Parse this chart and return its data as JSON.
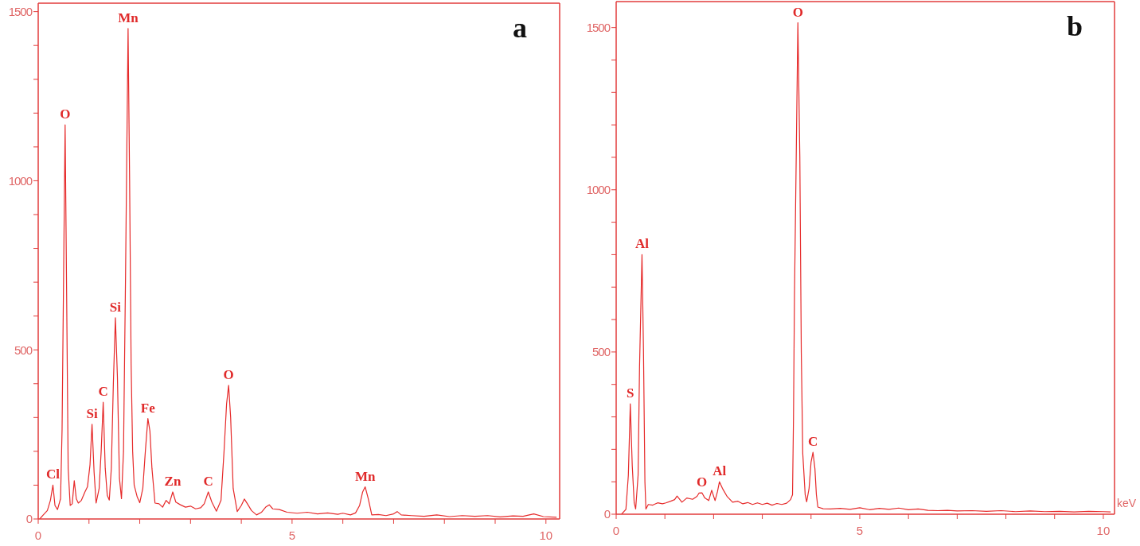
{
  "chart_data": [
    {
      "type": "line",
      "title": "a",
      "color": "#e62a2a",
      "xlim": [
        0,
        10.27
      ],
      "ylim": [
        0,
        1525
      ],
      "xticks": [
        0,
        {
          "value": 1,
          "label": null
        },
        {
          "value": 2,
          "label": null
        },
        {
          "value": 3,
          "label": null
        },
        {
          "value": 4,
          "label": null
        },
        5,
        {
          "value": 6,
          "label": null
        },
        {
          "value": 7,
          "label": null
        },
        {
          "value": 8,
          "label": null
        },
        {
          "value": 9,
          "label": null
        },
        10
      ],
      "yticks": [
        0,
        {
          "value": 100,
          "label": null
        },
        {
          "value": 200,
          "label": null
        },
        {
          "value": 300,
          "label": null
        },
        {
          "value": 400,
          "label": null
        },
        500,
        {
          "value": 600,
          "label": null
        },
        {
          "value": 700,
          "label": null
        },
        {
          "value": 800,
          "label": null
        },
        {
          "value": 900,
          "label": null
        },
        1000,
        {
          "value": 1100,
          "label": null
        },
        {
          "value": 1200,
          "label": null
        },
        {
          "value": 1300,
          "label": null
        },
        {
          "value": 1400,
          "label": null
        },
        1500
      ],
      "x": [
        0.03,
        0.1,
        0.18,
        0.24,
        0.29,
        0.33,
        0.38,
        0.44,
        0.47,
        0.5,
        0.53,
        0.56,
        0.59,
        0.63,
        0.67,
        0.71,
        0.75,
        0.79,
        0.85,
        0.92,
        0.97,
        1.02,
        1.06,
        1.1,
        1.14,
        1.2,
        1.24,
        1.28,
        1.32,
        1.36,
        1.4,
        1.44,
        1.48,
        1.52,
        1.56,
        1.6,
        1.64,
        1.68,
        1.72,
        1.77,
        1.8,
        1.83,
        1.86,
        1.89,
        1.95,
        2.0,
        2.06,
        2.11,
        2.16,
        2.2,
        2.24,
        2.3,
        2.38,
        2.45,
        2.52,
        2.58,
        2.65,
        2.71,
        2.8,
        2.9,
        3.0,
        3.1,
        3.2,
        3.27,
        3.35,
        3.42,
        3.51,
        3.6,
        3.66,
        3.71,
        3.75,
        3.79,
        3.84,
        3.92,
        4.0,
        4.06,
        4.12,
        4.2,
        4.3,
        4.4,
        4.48,
        4.55,
        4.62,
        4.75,
        4.9,
        5.1,
        5.3,
        5.5,
        5.7,
        5.9,
        6.0,
        6.15,
        6.25,
        6.33,
        6.39,
        6.44,
        6.5,
        6.57,
        6.7,
        6.85,
        7.0,
        7.07,
        7.15,
        7.35,
        7.6,
        7.85,
        8.1,
        8.35,
        8.6,
        8.85,
        9.1,
        9.35,
        9.55,
        9.76,
        9.95,
        10.21
      ],
      "values": [
        0,
        12,
        25,
        55,
        100,
        40,
        28,
        60,
        265,
        720,
        1165,
        660,
        150,
        40,
        45,
        113,
        60,
        47,
        55,
        80,
        95,
        160,
        280,
        140,
        47,
        90,
        200,
        345,
        150,
        70,
        56,
        150,
        400,
        595,
        420,
        120,
        60,
        200,
        720,
        1450,
        1000,
        457,
        200,
        100,
        65,
        48,
        90,
        200,
        297,
        260,
        150,
        47,
        45,
        35,
        55,
        45,
        80,
        50,
        42,
        35,
        38,
        30,
        33,
        45,
        80,
        50,
        23,
        55,
        200,
        340,
        395,
        300,
        90,
        22,
        40,
        59,
        45,
        25,
        12,
        20,
        35,
        42,
        30,
        28,
        20,
        17,
        20,
        15,
        18,
        14,
        17,
        12,
        18,
        40,
        80,
        95,
        60,
        12,
        13,
        10,
        15,
        22,
        12,
        10,
        8,
        12,
        7,
        10,
        8,
        10,
        6,
        9,
        8,
        15,
        7,
        5
      ],
      "annotations": [
        {
          "text": "Cl",
          "x": 0.29,
          "y": 100
        },
        {
          "text": "O",
          "x": 0.53,
          "y": 1165
        },
        {
          "text": "Si",
          "x": 1.06,
          "y": 280
        },
        {
          "text": "C",
          "x": 1.28,
          "y": 345
        },
        {
          "text": "Si",
          "x": 1.52,
          "y": 595
        },
        {
          "text": "Mn",
          "x": 1.77,
          "y": 1450
        },
        {
          "text": "Fe",
          "x": 2.16,
          "y": 297
        },
        {
          "text": "Zn",
          "x": 2.65,
          "y": 80
        },
        {
          "text": "C",
          "x": 3.35,
          "y": 80
        },
        {
          "text": "O",
          "x": 3.75,
          "y": 395
        },
        {
          "text": "Mn",
          "x": 6.44,
          "y": 95
        }
      ]
    },
    {
      "type": "line",
      "title": "b",
      "xlabel": "keV",
      "color": "#e62a2a",
      "xlim": [
        0,
        10.23
      ],
      "ylim": [
        0,
        1580
      ],
      "xticks": [
        0,
        {
          "value": 1,
          "label": null
        },
        {
          "value": 2,
          "label": null
        },
        {
          "value": 3,
          "label": null
        },
        {
          "value": 4,
          "label": null
        },
        5,
        {
          "value": 6,
          "label": null
        },
        {
          "value": 7,
          "label": null
        },
        {
          "value": 8,
          "label": null
        },
        {
          "value": 9,
          "label": null
        },
        10
      ],
      "yticks": [
        0,
        {
          "value": 100,
          "label": null
        },
        {
          "value": 200,
          "label": null
        },
        {
          "value": 300,
          "label": null
        },
        {
          "value": 400,
          "label": null
        },
        500,
        {
          "value": 600,
          "label": null
        },
        {
          "value": 700,
          "label": null
        },
        {
          "value": 800,
          "label": null
        },
        {
          "value": 900,
          "label": null
        },
        1000,
        {
          "value": 1100,
          "label": null
        },
        {
          "value": 1200,
          "label": null
        },
        {
          "value": 1300,
          "label": null
        },
        {
          "value": 1400,
          "label": null
        },
        1500
      ],
      "x": [
        0.11,
        0.2,
        0.25,
        0.29,
        0.33,
        0.37,
        0.4,
        0.45,
        0.48,
        0.53,
        0.56,
        0.59,
        0.61,
        0.66,
        0.75,
        0.85,
        0.95,
        1.02,
        1.12,
        1.2,
        1.25,
        1.35,
        1.45,
        1.57,
        1.66,
        1.7,
        1.76,
        1.82,
        1.9,
        1.96,
        2.03,
        2.08,
        2.12,
        2.18,
        2.28,
        2.39,
        2.5,
        2.6,
        2.7,
        2.8,
        2.9,
        3.0,
        3.1,
        3.2,
        3.3,
        3.4,
        3.5,
        3.58,
        3.62,
        3.64,
        3.66,
        3.7,
        3.73,
        3.77,
        3.8,
        3.83,
        3.88,
        3.91,
        3.96,
        4.0,
        4.04,
        4.08,
        4.11,
        4.14,
        4.25,
        4.4,
        4.6,
        4.8,
        5.0,
        5.2,
        5.4,
        5.6,
        5.8,
        6.0,
        6.2,
        6.4,
        6.6,
        6.8,
        7.0,
        7.3,
        7.6,
        7.9,
        8.2,
        8.5,
        8.8,
        9.1,
        9.4,
        9.7,
        10.0,
        10.15
      ],
      "values": [
        0,
        15,
        120,
        340,
        150,
        35,
        16,
        120,
        457,
        800,
        511,
        100,
        16,
        30,
        28,
        35,
        32,
        35,
        40,
        45,
        56,
        37,
        50,
        46,
        55,
        65,
        66,
        50,
        42,
        74,
        42,
        70,
        100,
        80,
        54,
        37,
        40,
        32,
        36,
        30,
        35,
        30,
        34,
        28,
        33,
        30,
        34,
        45,
        60,
        300,
        672,
        1150,
        1515,
        1103,
        500,
        188,
        60,
        38,
        80,
        160,
        191,
        140,
        60,
        22,
        17,
        16,
        18,
        15,
        20,
        14,
        18,
        15,
        19,
        14,
        16,
        12,
        11,
        12,
        10,
        11,
        9,
        11,
        8,
        10,
        8,
        9,
        7,
        9,
        8,
        7
      ],
      "annotations": [
        {
          "text": "S",
          "x": 0.29,
          "y": 340
        },
        {
          "text": "Al",
          "x": 0.53,
          "y": 800
        },
        {
          "text": "O",
          "x": 1.76,
          "y": 66
        },
        {
          "text": "Al",
          "x": 2.12,
          "y": 100
        },
        {
          "text": "O",
          "x": 3.73,
          "y": 1515
        },
        {
          "text": "C",
          "x": 4.04,
          "y": 191
        }
      ]
    }
  ]
}
